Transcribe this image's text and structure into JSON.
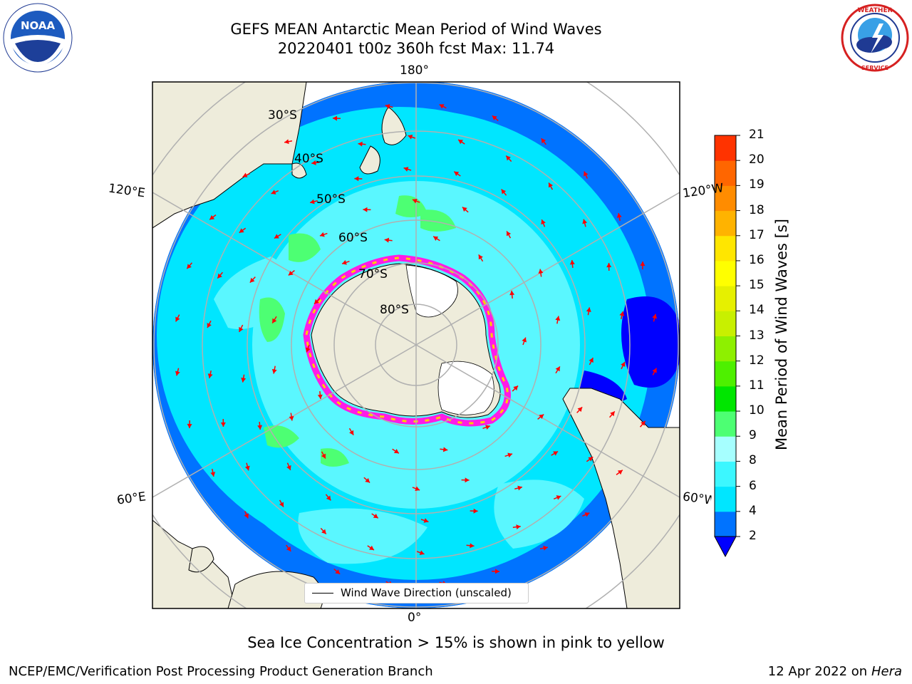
{
  "title": {
    "line1": "GEFS MEAN Antarctic Mean Period of Wind Waves",
    "line2": "20220401 t00z 360h fcst   Max: 11.74"
  },
  "logos": {
    "noaa": {
      "name": "noaa-logo",
      "text": "NOAA",
      "ring_text": "NATIONAL OCEANIC AND ATMOSPHERIC ADMINISTRATION · U.S. DEPARTMENT OF COMMERCE"
    },
    "nws": {
      "name": "national-weather-service-logo",
      "ring_text": "NATIONAL WEATHER SERVICE"
    }
  },
  "map": {
    "projection": "south polar stereographic",
    "longitude_labels": {
      "top": "180°",
      "bottom": "0°",
      "left_upper": "120°E",
      "right_upper": "120°W",
      "left_lower": "60°E",
      "right_lower": "60°W"
    },
    "latitude_labels": [
      "30°S",
      "40°S",
      "50°S",
      "60°S",
      "70°S",
      "80°S"
    ],
    "colors": {
      "land": "#eeecdb",
      "ocean_2_4": "#0073ff",
      "ocean_4_6": "#00e6ff",
      "ocean_6_8": "#5af7ff",
      "swell_green": "#4dff73",
      "ice_pink": "#ff1ce6",
      "ice_yellow": "#ffcc00",
      "arrows": "#ff0000",
      "gridlines": "#b0b0b0"
    },
    "legend": "Wind Wave Direction (unscaled)"
  },
  "colorbar": {
    "label": "Mean Period of Wind Waves [s]",
    "ticks": [
      "2",
      "4",
      "6",
      "8",
      "9",
      "10",
      "11",
      "12",
      "13",
      "14",
      "15",
      "16",
      "17",
      "18",
      "19",
      "20",
      "21"
    ],
    "colors": [
      "#0073ff",
      "#00e6ff",
      "#3cf7ff",
      "#a6ffff",
      "#4dff73",
      "#00e600",
      "#4ef000",
      "#8ef000",
      "#c8f000",
      "#e6f000",
      "#ffff00",
      "#ffe600",
      "#ffb300",
      "#ff8c00",
      "#ff6600",
      "#ff3300",
      "#ff0000"
    ],
    "extend_min_color": "#0000ff"
  },
  "caption": "Sea Ice Concentration > 15% is shown in pink to yellow",
  "footer": {
    "left": "NCEP/EMC/Verification Post Processing Product Generation Branch",
    "right_date": "12 Apr 2022 on ",
    "right_host": "Hera"
  }
}
